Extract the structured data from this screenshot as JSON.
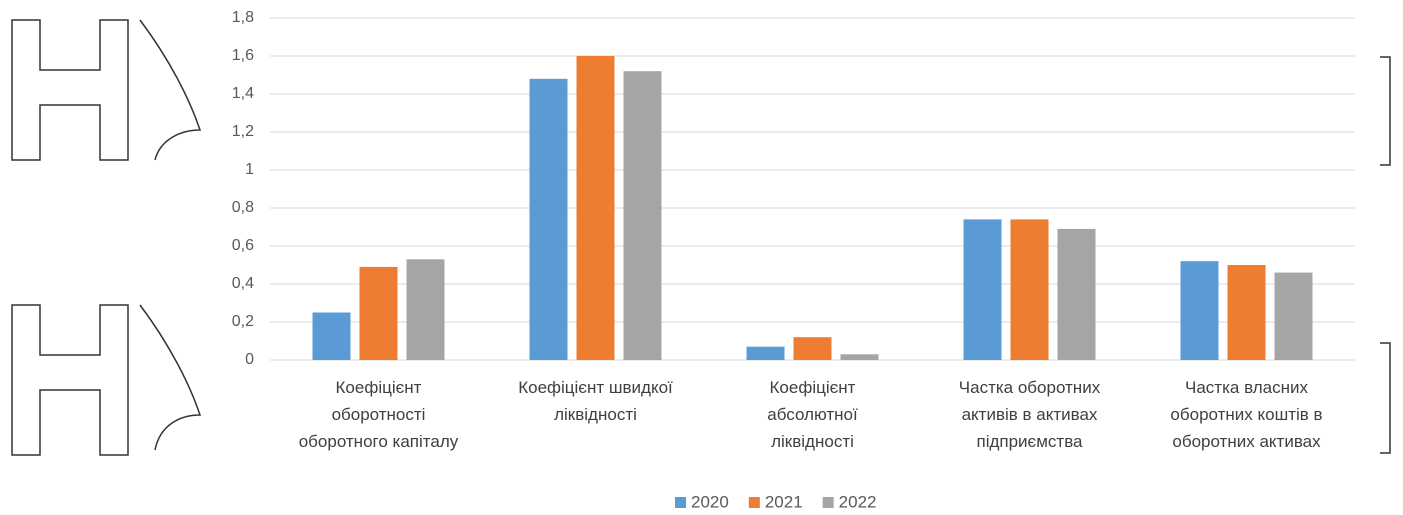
{
  "chart_data": {
    "type": "bar",
    "categories": [
      "Коефіцієнт\nоборотності\nоборотного капіталу",
      "Коефіцієнт швидкої\nліквідності",
      "Коефіцієнт\nабсолютної\nліквідності",
      "Частка оборотних\nактивів в активах\nпідприємства",
      "Частка власних\nоборотних коштів в\nоборотних активах"
    ],
    "series": [
      {
        "name": "2020",
        "color": "#5b9bd5",
        "values": [
          0.25,
          1.48,
          0.07,
          0.74,
          0.52
        ]
      },
      {
        "name": "2021",
        "color": "#ed7d31",
        "values": [
          0.49,
          1.6,
          0.12,
          0.74,
          0.5
        ]
      },
      {
        "name": "2022",
        "color": "#a5a5a5",
        "values": [
          0.53,
          1.52,
          0.03,
          0.69,
          0.46
        ]
      }
    ],
    "ylim": [
      0,
      1.8
    ],
    "yticks": [
      0,
      {
        "value": 0.2,
        "label": "0,2"
      },
      {
        "value": 0.4,
        "label": "0,4"
      },
      {
        "value": 0.6,
        "label": "0,6"
      },
      {
        "value": 0.8,
        "label": "0,8"
      },
      1,
      {
        "value": 1.2,
        "label": "1,2"
      },
      {
        "value": 1.4,
        "label": "1,4"
      },
      {
        "value": 1.6,
        "label": "1,6"
      },
      {
        "value": 1.8,
        "label": "1,8"
      }
    ],
    "grid": true,
    "legend": "bottom"
  }
}
